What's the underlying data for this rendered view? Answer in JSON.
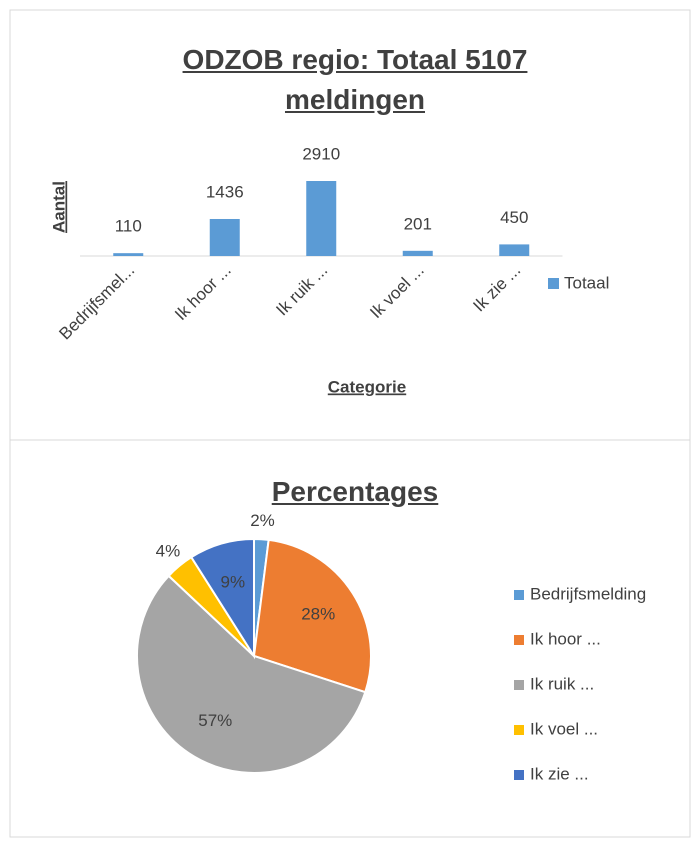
{
  "chart_data": [
    {
      "type": "bar",
      "title": "ODZOB regio: Totaal 5107 meldingen",
      "categories": [
        "Bedrijfsmel...",
        "Ik hoor ...",
        "Ik ruik ...",
        "Ik voel ...",
        "Ik zie ..."
      ],
      "series": [
        {
          "name": "Totaal",
          "color": "#5b9bd5",
          "values": [
            110,
            1436,
            2910,
            201,
            450
          ]
        }
      ],
      "ylabel": "Aantal",
      "xlabel": "Categorie",
      "legend": "right"
    },
    {
      "type": "pie",
      "title": "Percentages",
      "categories": [
        "Bedrijfsmelding",
        "Ik hoor ...",
        "Ik ruik ...",
        "Ik voel ...",
        "Ik zie ..."
      ],
      "values": [
        2,
        28,
        57,
        4,
        9
      ],
      "value_labels": [
        "2%",
        "28%",
        "57%",
        "4%",
        "9%"
      ],
      "colors": [
        "#5b9bd5",
        "#ed7d31",
        "#a5a5a5",
        "#ffc000",
        "#4472c4"
      ],
      "legend": "right"
    }
  ]
}
